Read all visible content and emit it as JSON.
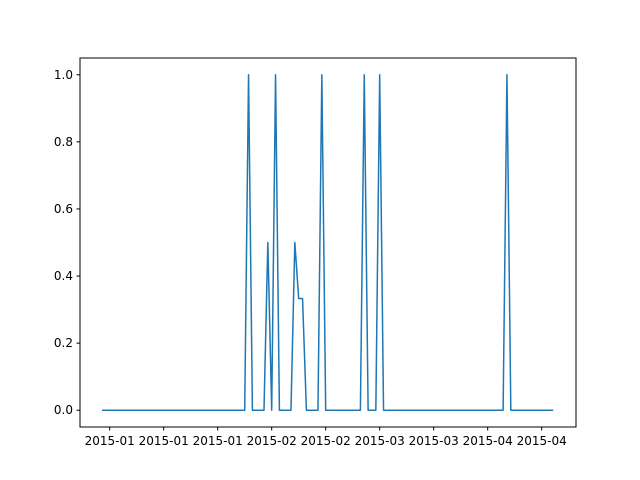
{
  "chart_data": {
    "type": "line",
    "values": [
      0,
      0,
      0,
      0,
      0,
      0,
      0,
      0,
      0,
      0,
      0,
      0,
      0,
      0,
      0,
      0,
      0,
      0,
      0,
      0,
      0,
      0,
      0,
      0,
      0,
      0,
      0,
      0,
      0,
      0,
      0,
      0,
      0,
      0,
      0,
      0,
      0,
      0,
      1,
      0,
      0,
      0,
      0,
      0.5,
      0,
      1,
      0,
      0,
      0,
      0,
      0.5,
      0.333,
      0.333,
      0,
      0,
      0,
      0,
      1,
      0,
      0,
      0,
      0,
      0,
      0,
      0,
      0,
      0,
      0,
      1,
      0,
      0,
      0,
      1,
      0,
      0,
      0,
      0,
      0,
      0,
      0,
      0,
      0,
      0,
      0,
      0,
      0,
      0,
      0,
      0,
      0,
      0,
      0,
      0,
      0,
      0,
      0,
      0,
      0,
      0,
      0,
      0,
      0,
      0,
      0,
      0,
      1,
      0,
      0,
      0,
      0,
      0,
      0,
      0,
      0,
      0,
      0,
      0,
      0
    ],
    "color": "#1f77b4",
    "xlim": [
      -5.7,
      122.9
    ],
    "xticks": [
      {
        "value": 2,
        "label": "2015-01"
      },
      {
        "value": 16,
        "label": "2015-01"
      },
      {
        "value": 30,
        "label": "2015-01"
      },
      {
        "value": 44,
        "label": "2015-02"
      },
      {
        "value": 58,
        "label": "2015-02"
      },
      {
        "value": 72,
        "label": "2015-03"
      },
      {
        "value": 86,
        "label": "2015-03"
      },
      {
        "value": 100,
        "label": "2015-04"
      },
      {
        "value": 114,
        "label": "2015-04"
      }
    ],
    "ylim": [
      -0.05,
      1.05
    ],
    "yticks": [
      {
        "value": 0,
        "label": "0.0"
      },
      {
        "value": 0.2,
        "label": "0.2"
      },
      {
        "value": 0.4,
        "label": "0.4"
      },
      {
        "value": 0.6,
        "label": "0.6"
      },
      {
        "value": 0.8,
        "label": "0.8"
      },
      {
        "value": 1,
        "label": "1.0"
      }
    ]
  }
}
